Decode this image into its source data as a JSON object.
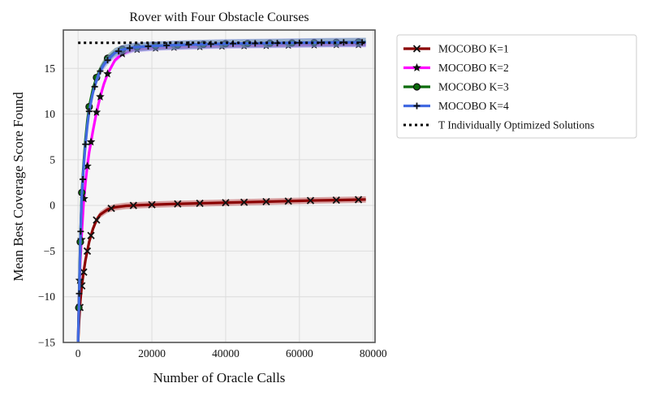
{
  "chart_data": {
    "type": "line",
    "title": "Rover with Four Obstacle Courses",
    "xlabel": "Number of Oracle Calls",
    "ylabel": "Mean Best Coverage Score Found",
    "xlim": [
      -4000,
      80500
    ],
    "ylim": [
      -15,
      19.2
    ],
    "xticks": [
      0,
      20000,
      40000,
      60000,
      80000
    ],
    "xtick_labels": [
      "0",
      "20000",
      "40000",
      "60000",
      "80000"
    ],
    "yticks": [
      -15,
      -10,
      -5,
      0,
      5,
      10,
      15
    ],
    "ytick_labels": [
      "−15",
      "−10",
      "−5",
      "0",
      "5",
      "10",
      "15"
    ],
    "grid": true,
    "legend_placement": "outside-upper-right",
    "reference_line": {
      "name": "T Individually Optimized Solutions",
      "y": 17.8,
      "x_range": [
        0,
        78000
      ],
      "color": "#000000",
      "style": "dotted"
    },
    "series": [
      {
        "name": "MOCOBO K=1",
        "color": "#8b0000",
        "band_color": "#c0585a",
        "marker": "x",
        "x": [
          0,
          300,
          600,
          1000,
          1500,
          2000,
          2500,
          3000,
          4000,
          5000,
          6000,
          8000,
          10000,
          13000,
          16000,
          20000,
          25000,
          30000,
          35000,
          40000,
          45000,
          50000,
          55000,
          60000,
          65000,
          70000,
          75000,
          78000
        ],
        "y": [
          -15,
          -12.5,
          -10.5,
          -8.8,
          -7.3,
          -6.0,
          -5.0,
          -4.0,
          -2.6,
          -1.6,
          -1.0,
          -0.45,
          -0.2,
          -0.05,
          0.02,
          0.08,
          0.15,
          0.2,
          0.25,
          0.3,
          0.35,
          0.4,
          0.45,
          0.5,
          0.55,
          0.58,
          0.62,
          0.65
        ],
        "markers_x": [
          500,
          1000,
          1500,
          2500,
          3500,
          5000,
          9000,
          15000,
          20000,
          27000,
          33000,
          40000,
          45000,
          51000,
          57000,
          63000,
          70000,
          76000
        ],
        "band": 0.35
      },
      {
        "name": "MOCOBO K=2",
        "color": "#ff00ff",
        "band_color": "#c7a2f5",
        "marker": "star",
        "x": [
          0,
          200,
          400,
          600,
          1000,
          1500,
          2000,
          2500,
          3000,
          4000,
          5000,
          6000,
          7000,
          8000,
          10000,
          12000,
          15000,
          20000,
          25000,
          30000,
          40000,
          50000,
          60000,
          70000,
          78000
        ],
        "y": [
          -15,
          -11,
          -8.2,
          -6,
          -3.0,
          0.3,
          2.5,
          4.3,
          5.8,
          8.1,
          10.2,
          11.9,
          13.3,
          14.4,
          15.9,
          16.6,
          17.05,
          17.2,
          17.3,
          17.35,
          17.45,
          17.5,
          17.55,
          17.6,
          17.6
        ],
        "markers_x": [
          400,
          900,
          1600,
          2500,
          3500,
          5000,
          6000,
          8000,
          12000,
          16000,
          21000,
          26000,
          33000,
          39000,
          45000,
          51000,
          57000,
          64000,
          70000,
          76000
        ],
        "band": 0.3
      },
      {
        "name": "MOCOBO K=3",
        "color": "#0b6b0b",
        "band_color": "#72ad6c",
        "marker": "circle",
        "x": [
          0,
          200,
          400,
          600,
          800,
          1000,
          1500,
          2000,
          2500,
          3000,
          4000,
          5000,
          6000,
          7000,
          8000,
          10000,
          12000,
          15000,
          20000,
          30000,
          40000,
          50000,
          60000,
          70000,
          78000
        ],
        "y": [
          -15,
          -11.2,
          -7.5,
          -4,
          -1.2,
          1.4,
          4.5,
          7.2,
          9.2,
          10.8,
          12.7,
          14.0,
          14.9,
          15.6,
          16.1,
          16.8,
          17.1,
          17.3,
          17.45,
          17.6,
          17.7,
          17.75,
          17.8,
          17.85,
          17.9
        ],
        "markers_x": [
          200,
          600,
          1000,
          3000,
          5000,
          8000,
          12000,
          16000,
          21000,
          27000,
          34000,
          40000,
          46000,
          52000,
          58000,
          64000,
          70000,
          76000
        ],
        "band": 0.45
      },
      {
        "name": "MOCOBO K=4",
        "color": "#4169e1",
        "band_color": "#7f8ee8",
        "marker": "plus",
        "x": [
          0,
          200,
          400,
          600,
          800,
          1000,
          1500,
          2000,
          2500,
          3000,
          4000,
          5000,
          6000,
          7000,
          8000,
          10000,
          12000,
          15000,
          20000,
          30000,
          40000,
          50000,
          60000,
          70000,
          78000
        ],
        "y": [
          -15,
          -11.5,
          -7.8,
          -4.3,
          -1.4,
          1.0,
          4.1,
          6.7,
          8.7,
          10.3,
          12.3,
          13.7,
          14.7,
          15.4,
          15.9,
          16.7,
          17.05,
          17.3,
          17.45,
          17.6,
          17.7,
          17.75,
          17.8,
          17.85,
          17.85
        ],
        "markers_x": [
          300,
          700,
          1300,
          2000,
          3000,
          4500,
          6000,
          8000,
          11000,
          14000,
          19000,
          24000,
          30000,
          36000,
          42000,
          48000,
          54000,
          60000,
          66000,
          72000,
          77000
        ],
        "band": 0.5
      }
    ]
  }
}
